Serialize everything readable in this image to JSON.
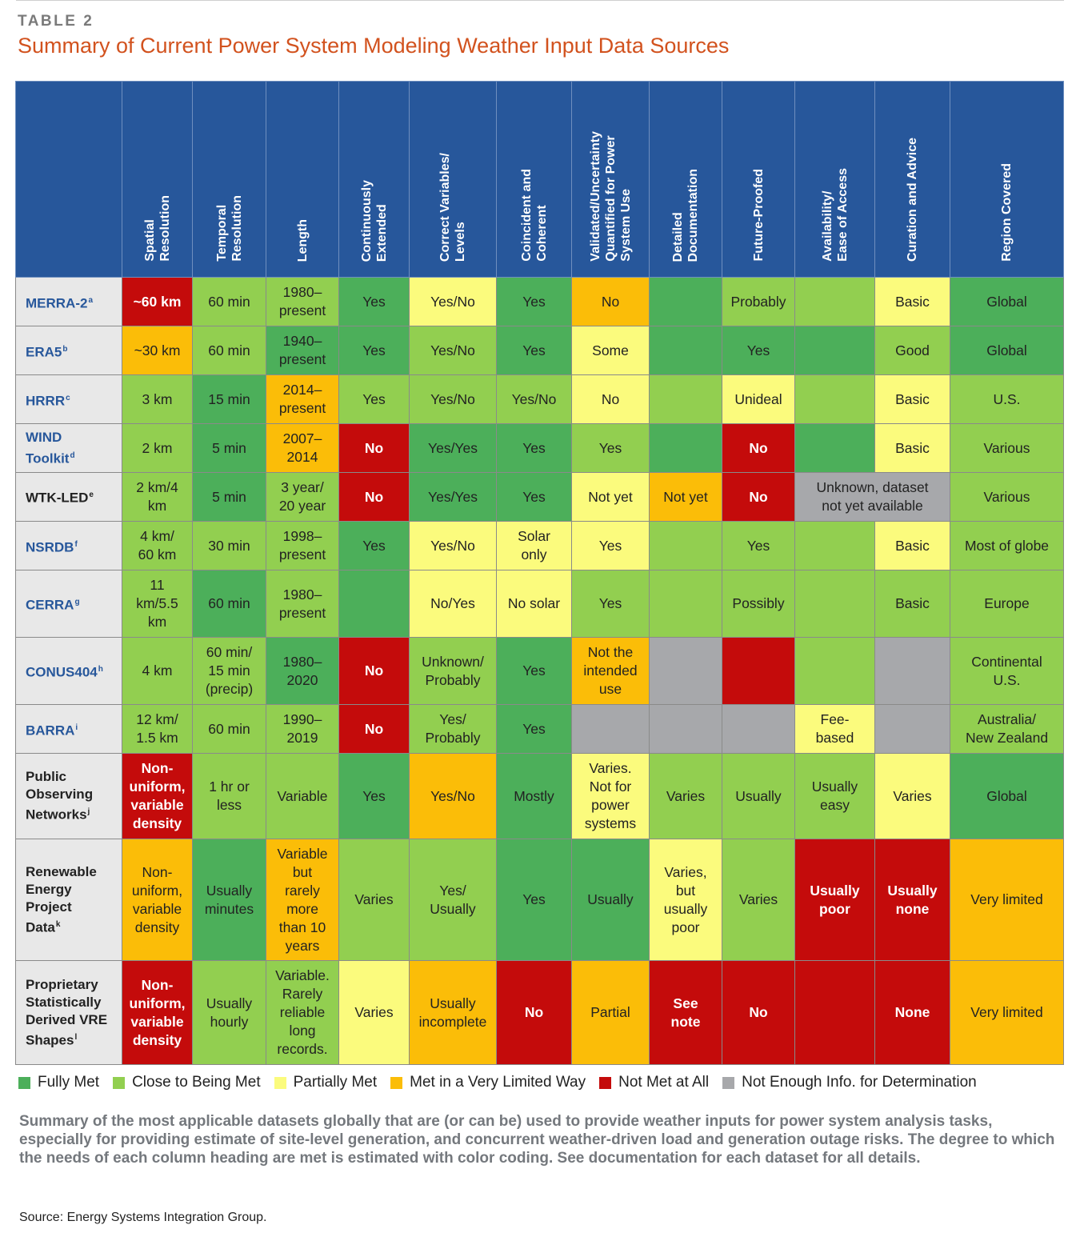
{
  "label": "TABLE 2",
  "title": "Summary of Current Power System Modeling Weather Input Data Sources",
  "table": {
    "headers": [
      [
        "Spatial",
        "Resolution"
      ],
      [
        "Temporal",
        "Resolution"
      ],
      [
        "Length"
      ],
      [
        "Continuously",
        "Extended"
      ],
      [
        "Correct Variables/",
        "Levels"
      ],
      [
        "Coincident and",
        "Coherent"
      ],
      [
        "Validated/Uncertainty",
        "Quantified for Power",
        "System Use"
      ],
      [
        "Detailed",
        "Documentation"
      ],
      [
        "Future-Proofed"
      ],
      [
        "Availability/",
        "Ease of Access"
      ],
      [
        "Curation and Advice"
      ],
      [
        "Region Covered"
      ]
    ],
    "rows": [
      {
        "name": [
          "MERRA-2"
        ],
        "sup": "a",
        "style": "blue",
        "h": 61,
        "cells": [
          {
            "t": "~60 km",
            "c": 5
          },
          {
            "t": "60 min",
            "c": 2
          },
          {
            "t": "1980–\npresent",
            "c": 2
          },
          {
            "t": "Yes",
            "c": 1
          },
          {
            "t": "Yes/No",
            "c": 3
          },
          {
            "t": "Yes",
            "c": 1
          },
          {
            "t": "No",
            "c": 4
          },
          {
            "t": "",
            "c": 1
          },
          {
            "t": "Probably",
            "c": 2
          },
          {
            "t": "",
            "c": 2
          },
          {
            "t": "Basic",
            "c": 3
          },
          {
            "t": "Global",
            "c": 1
          }
        ]
      },
      {
        "name": [
          "ERA5"
        ],
        "sup": "b",
        "style": "blue",
        "h": 61,
        "cells": [
          {
            "t": "~30 km",
            "c": 4
          },
          {
            "t": "60 min",
            "c": 2
          },
          {
            "t": "1940–\npresent",
            "c": 1
          },
          {
            "t": "Yes",
            "c": 1
          },
          {
            "t": "Yes/No",
            "c": 2
          },
          {
            "t": "Yes",
            "c": 1
          },
          {
            "t": "Some",
            "c": 3
          },
          {
            "t": "",
            "c": 1
          },
          {
            "t": "Yes",
            "c": 1
          },
          {
            "t": "",
            "c": 1
          },
          {
            "t": "Good",
            "c": 2
          },
          {
            "t": "Global",
            "c": 1
          }
        ]
      },
      {
        "name": [
          "HRRR"
        ],
        "sup": "c",
        "style": "blue",
        "h": 61,
        "cells": [
          {
            "t": "3 km",
            "c": 2
          },
          {
            "t": "15 min",
            "c": 1
          },
          {
            "t": "2014–\npresent",
            "c": 4
          },
          {
            "t": "Yes",
            "c": 2
          },
          {
            "t": "Yes/No",
            "c": 2
          },
          {
            "t": "Yes/No",
            "c": 2
          },
          {
            "t": "No",
            "c": 3
          },
          {
            "t": "",
            "c": 2
          },
          {
            "t": "Unideal",
            "c": 3
          },
          {
            "t": "",
            "c": 2
          },
          {
            "t": "Basic",
            "c": 3
          },
          {
            "t": "U.S.",
            "c": 2
          }
        ]
      },
      {
        "name": [
          "WIND",
          "Toolkit"
        ],
        "sup": "d",
        "style": "blue",
        "h": 61,
        "cells": [
          {
            "t": "2 km",
            "c": 2
          },
          {
            "t": "5 min",
            "c": 1
          },
          {
            "t": "2007–\n2014",
            "c": 4
          },
          {
            "t": "No",
            "c": 5
          },
          {
            "t": "Yes/Yes",
            "c": 1
          },
          {
            "t": "Yes",
            "c": 1
          },
          {
            "t": "Yes",
            "c": 2
          },
          {
            "t": "",
            "c": 1
          },
          {
            "t": "No",
            "c": 5
          },
          {
            "t": "",
            "c": 1
          },
          {
            "t": "Basic",
            "c": 3
          },
          {
            "t": "Various",
            "c": 2
          }
        ]
      },
      {
        "name": [
          "WTK-LED"
        ],
        "sup": "e",
        "style": "dark",
        "h": 61,
        "cells": [
          {
            "t": "2 km/4\nkm",
            "c": 2
          },
          {
            "t": "5 min",
            "c": 1
          },
          {
            "t": "3 year/\n20 year",
            "c": 2
          },
          {
            "t": "No",
            "c": 5
          },
          {
            "t": "Yes/Yes",
            "c": 1
          },
          {
            "t": "Yes",
            "c": 1
          },
          {
            "t": "Not yet",
            "c": 3
          },
          {
            "t": "Not yet",
            "c": 4
          },
          {
            "t": "No",
            "c": 5
          },
          {
            "t": "Unknown, dataset\nnot yet available",
            "c": 6,
            "span": 2
          },
          {
            "t": "Various",
            "c": 2
          }
        ]
      },
      {
        "name": [
          "NSRDB"
        ],
        "sup": "f",
        "style": "blue",
        "h": 61,
        "cells": [
          {
            "t": "4 km/\n60 km",
            "c": 2
          },
          {
            "t": "30 min",
            "c": 2
          },
          {
            "t": "1998–\npresent",
            "c": 2
          },
          {
            "t": "Yes",
            "c": 1
          },
          {
            "t": "Yes/No",
            "c": 3
          },
          {
            "t": "Solar\nonly",
            "c": 3
          },
          {
            "t": "Yes",
            "c": 3
          },
          {
            "t": "",
            "c": 2
          },
          {
            "t": "Yes",
            "c": 2
          },
          {
            "t": "",
            "c": 2
          },
          {
            "t": "Basic",
            "c": 3
          },
          {
            "t": "Most of globe",
            "c": 2
          }
        ]
      },
      {
        "name": [
          "CERRA"
        ],
        "sup": "g",
        "style": "blue",
        "h": 84,
        "cells": [
          {
            "t": "11\nkm/5.5\nkm",
            "c": 2
          },
          {
            "t": "60 min",
            "c": 1
          },
          {
            "t": "1980–\npresent",
            "c": 2
          },
          {
            "t": "",
            "c": 1
          },
          {
            "t": "No/Yes",
            "c": 3
          },
          {
            "t": "No solar",
            "c": 3
          },
          {
            "t": "Yes",
            "c": 2
          },
          {
            "t": "",
            "c": 2
          },
          {
            "t": "Possibly",
            "c": 2
          },
          {
            "t": "",
            "c": 2
          },
          {
            "t": "Basic",
            "c": 2
          },
          {
            "t": "Europe",
            "c": 2
          }
        ]
      },
      {
        "name": [
          "CONUS404"
        ],
        "sup": "h",
        "style": "blue",
        "h": 84,
        "cells": [
          {
            "t": "4 km",
            "c": 2
          },
          {
            "t": "60 min/\n15 min\n(precip)",
            "c": 2
          },
          {
            "t": "1980–\n2020",
            "c": 1
          },
          {
            "t": "No",
            "c": 5
          },
          {
            "t": "Unknown/\nProbably",
            "c": 2
          },
          {
            "t": "Yes",
            "c": 1
          },
          {
            "t": "Not the\nintended\nuse",
            "c": 4
          },
          {
            "t": "",
            "c": 6
          },
          {
            "t": "",
            "c": 5
          },
          {
            "t": "",
            "c": 2
          },
          {
            "t": "",
            "c": 6
          },
          {
            "t": "Continental\nU.S.",
            "c": 2
          }
        ]
      },
      {
        "name": [
          "BARRA"
        ],
        "sup": "i",
        "style": "blue",
        "h": 61,
        "cells": [
          {
            "t": "12 km/\n1.5 km",
            "c": 2
          },
          {
            "t": "60 min",
            "c": 2
          },
          {
            "t": "1990–\n2019",
            "c": 2
          },
          {
            "t": "No",
            "c": 5
          },
          {
            "t": "Yes/\nProbably",
            "c": 2
          },
          {
            "t": "Yes",
            "c": 1
          },
          {
            "t": "",
            "c": 6
          },
          {
            "t": "",
            "c": 6
          },
          {
            "t": "",
            "c": 6
          },
          {
            "t": "Fee-\nbased",
            "c": 3
          },
          {
            "t": "",
            "c": 6
          },
          {
            "t": "Australia/\nNew Zealand",
            "c": 2
          }
        ]
      },
      {
        "name": [
          "Public",
          "Observing",
          "Networks"
        ],
        "sup": "j",
        "style": "dark",
        "h": 107,
        "cells": [
          {
            "t": "Non-\nuniform,\nvariable\ndensity",
            "c": 5
          },
          {
            "t": "1 hr or\nless",
            "c": 2
          },
          {
            "t": "Variable",
            "c": 2
          },
          {
            "t": "Yes",
            "c": 1
          },
          {
            "t": "Yes/No",
            "c": 4
          },
          {
            "t": "Mostly",
            "c": 1
          },
          {
            "t": "Varies.\nNot for\npower\nsystems",
            "c": 3
          },
          {
            "t": "Varies",
            "c": 2
          },
          {
            "t": "Usually",
            "c": 2
          },
          {
            "t": "Usually\neasy",
            "c": 2
          },
          {
            "t": "Varies",
            "c": 3
          },
          {
            "t": "Global",
            "c": 1
          }
        ]
      },
      {
        "name": [
          "Renewable",
          "Energy",
          "Project",
          "Data"
        ],
        "sup": "k",
        "style": "dark",
        "h": 152,
        "cells": [
          {
            "t": "Non-\nuniform,\nvariable\ndensity",
            "c": 4
          },
          {
            "t": "Usually\nminutes",
            "c": 1
          },
          {
            "t": "Variable\nbut\nrarely\nmore\nthan 10\nyears",
            "c": 4
          },
          {
            "t": "Varies",
            "c": 2
          },
          {
            "t": "Yes/\nUsually",
            "c": 2
          },
          {
            "t": "Yes",
            "c": 1
          },
          {
            "t": "Usually",
            "c": 1
          },
          {
            "t": "Varies,\nbut\nusually\npoor",
            "c": 3
          },
          {
            "t": "Varies",
            "c": 2
          },
          {
            "t": "Usually\npoor",
            "c": 5
          },
          {
            "t": "Usually\nnone",
            "c": 5
          },
          {
            "t": "Very limited",
            "c": 4
          }
        ]
      },
      {
        "name": [
          "Proprietary",
          "Statistically",
          "Derived VRE",
          "Shapes"
        ],
        "sup": "l",
        "style": "dark",
        "h": 130,
        "cells": [
          {
            "t": "Non-\nuniform,\nvariable\ndensity",
            "c": 5
          },
          {
            "t": "Usually\nhourly",
            "c": 2
          },
          {
            "t": "Variable.\nRarely\nreliable\nlong\nrecords.",
            "c": 2
          },
          {
            "t": "Varies",
            "c": 3
          },
          {
            "t": "Usually\nincomplete",
            "c": 4
          },
          {
            "t": "No",
            "c": 5
          },
          {
            "t": "Partial",
            "c": 4
          },
          {
            "t": "See\nnote",
            "c": 5
          },
          {
            "t": "No",
            "c": 5
          },
          {
            "t": "",
            "c": 5
          },
          {
            "t": "None",
            "c": 5
          },
          {
            "t": "Very limited",
            "c": 4
          }
        ]
      }
    ]
  },
  "colors": {
    "1": "#4caf5a",
    "2": "#92cf50",
    "3": "#fbfb7d",
    "4": "#fbbd08",
    "5": "#c40b0b",
    "6": "#a7a8ab",
    "header_bg": "#27579b",
    "title": "#d2521e"
  },
  "legend": [
    {
      "label": "Fully Met",
      "c": 1
    },
    {
      "label": "Close to Being Met",
      "c": 2
    },
    {
      "label": "Partially Met",
      "c": 3
    },
    {
      "label": "Met in a Very Limited Way",
      "c": 4
    },
    {
      "label": "Not Met at All",
      "c": 5
    },
    {
      "label": "Not Enough Info. for Determination",
      "c": 6
    }
  ],
  "caption": "Summary of the most applicable datasets globally that are (or can be) used to provide weather inputs for power system analysis tasks, especially for providing estimate of site-level generation, and concurrent weather-driven load and generation outage risks. The degree to which the needs of each column heading are met is estimated with color coding. See documentation for each dataset for all details.",
  "source": "Source: Energy Systems Integration Group."
}
